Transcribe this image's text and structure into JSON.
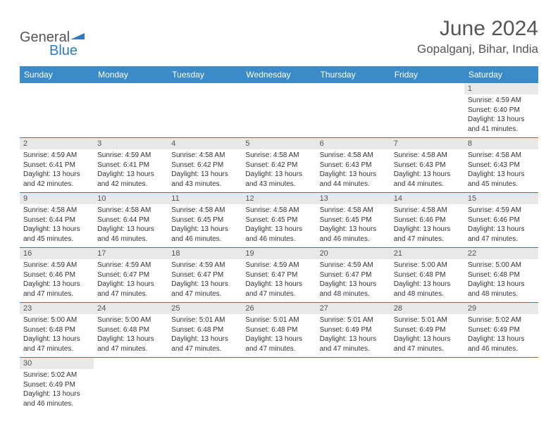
{
  "logo": {
    "general": "General",
    "blue": "Blue"
  },
  "header": {
    "month_title": "June 2024",
    "location": "Gopalganj, Bihar, India"
  },
  "colors": {
    "header_bg": "#3b8bc9",
    "row_divider": "#2f7bbf",
    "daynum_bg": "#e8e8e8",
    "text": "#333333",
    "title": "#555555"
  },
  "day_headers": [
    "Sunday",
    "Monday",
    "Tuesday",
    "Wednesday",
    "Thursday",
    "Friday",
    "Saturday"
  ],
  "weeks": [
    [
      null,
      null,
      null,
      null,
      null,
      null,
      {
        "n": "1",
        "sr": "Sunrise: 4:59 AM",
        "ss": "Sunset: 6:40 PM",
        "d1": "Daylight: 13 hours",
        "d2": "and 41 minutes."
      }
    ],
    [
      {
        "n": "2",
        "sr": "Sunrise: 4:59 AM",
        "ss": "Sunset: 6:41 PM",
        "d1": "Daylight: 13 hours",
        "d2": "and 42 minutes."
      },
      {
        "n": "3",
        "sr": "Sunrise: 4:59 AM",
        "ss": "Sunset: 6:41 PM",
        "d1": "Daylight: 13 hours",
        "d2": "and 42 minutes."
      },
      {
        "n": "4",
        "sr": "Sunrise: 4:58 AM",
        "ss": "Sunset: 6:42 PM",
        "d1": "Daylight: 13 hours",
        "d2": "and 43 minutes."
      },
      {
        "n": "5",
        "sr": "Sunrise: 4:58 AM",
        "ss": "Sunset: 6:42 PM",
        "d1": "Daylight: 13 hours",
        "d2": "and 43 minutes."
      },
      {
        "n": "6",
        "sr": "Sunrise: 4:58 AM",
        "ss": "Sunset: 6:43 PM",
        "d1": "Daylight: 13 hours",
        "d2": "and 44 minutes."
      },
      {
        "n": "7",
        "sr": "Sunrise: 4:58 AM",
        "ss": "Sunset: 6:43 PM",
        "d1": "Daylight: 13 hours",
        "d2": "and 44 minutes."
      },
      {
        "n": "8",
        "sr": "Sunrise: 4:58 AM",
        "ss": "Sunset: 6:43 PM",
        "d1": "Daylight: 13 hours",
        "d2": "and 45 minutes."
      }
    ],
    [
      {
        "n": "9",
        "sr": "Sunrise: 4:58 AM",
        "ss": "Sunset: 6:44 PM",
        "d1": "Daylight: 13 hours",
        "d2": "and 45 minutes."
      },
      {
        "n": "10",
        "sr": "Sunrise: 4:58 AM",
        "ss": "Sunset: 6:44 PM",
        "d1": "Daylight: 13 hours",
        "d2": "and 46 minutes."
      },
      {
        "n": "11",
        "sr": "Sunrise: 4:58 AM",
        "ss": "Sunset: 6:45 PM",
        "d1": "Daylight: 13 hours",
        "d2": "and 46 minutes."
      },
      {
        "n": "12",
        "sr": "Sunrise: 4:58 AM",
        "ss": "Sunset: 6:45 PM",
        "d1": "Daylight: 13 hours",
        "d2": "and 46 minutes."
      },
      {
        "n": "13",
        "sr": "Sunrise: 4:58 AM",
        "ss": "Sunset: 6:45 PM",
        "d1": "Daylight: 13 hours",
        "d2": "and 46 minutes."
      },
      {
        "n": "14",
        "sr": "Sunrise: 4:58 AM",
        "ss": "Sunset: 6:46 PM",
        "d1": "Daylight: 13 hours",
        "d2": "and 47 minutes."
      },
      {
        "n": "15",
        "sr": "Sunrise: 4:59 AM",
        "ss": "Sunset: 6:46 PM",
        "d1": "Daylight: 13 hours",
        "d2": "and 47 minutes."
      }
    ],
    [
      {
        "n": "16",
        "sr": "Sunrise: 4:59 AM",
        "ss": "Sunset: 6:46 PM",
        "d1": "Daylight: 13 hours",
        "d2": "and 47 minutes."
      },
      {
        "n": "17",
        "sr": "Sunrise: 4:59 AM",
        "ss": "Sunset: 6:47 PM",
        "d1": "Daylight: 13 hours",
        "d2": "and 47 minutes."
      },
      {
        "n": "18",
        "sr": "Sunrise: 4:59 AM",
        "ss": "Sunset: 6:47 PM",
        "d1": "Daylight: 13 hours",
        "d2": "and 47 minutes."
      },
      {
        "n": "19",
        "sr": "Sunrise: 4:59 AM",
        "ss": "Sunset: 6:47 PM",
        "d1": "Daylight: 13 hours",
        "d2": "and 47 minutes."
      },
      {
        "n": "20",
        "sr": "Sunrise: 4:59 AM",
        "ss": "Sunset: 6:47 PM",
        "d1": "Daylight: 13 hours",
        "d2": "and 48 minutes."
      },
      {
        "n": "21",
        "sr": "Sunrise: 5:00 AM",
        "ss": "Sunset: 6:48 PM",
        "d1": "Daylight: 13 hours",
        "d2": "and 48 minutes."
      },
      {
        "n": "22",
        "sr": "Sunrise: 5:00 AM",
        "ss": "Sunset: 6:48 PM",
        "d1": "Daylight: 13 hours",
        "d2": "and 48 minutes."
      }
    ],
    [
      {
        "n": "23",
        "sr": "Sunrise: 5:00 AM",
        "ss": "Sunset: 6:48 PM",
        "d1": "Daylight: 13 hours",
        "d2": "and 47 minutes."
      },
      {
        "n": "24",
        "sr": "Sunrise: 5:00 AM",
        "ss": "Sunset: 6:48 PM",
        "d1": "Daylight: 13 hours",
        "d2": "and 47 minutes."
      },
      {
        "n": "25",
        "sr": "Sunrise: 5:01 AM",
        "ss": "Sunset: 6:48 PM",
        "d1": "Daylight: 13 hours",
        "d2": "and 47 minutes."
      },
      {
        "n": "26",
        "sr": "Sunrise: 5:01 AM",
        "ss": "Sunset: 6:48 PM",
        "d1": "Daylight: 13 hours",
        "d2": "and 47 minutes."
      },
      {
        "n": "27",
        "sr": "Sunrise: 5:01 AM",
        "ss": "Sunset: 6:49 PM",
        "d1": "Daylight: 13 hours",
        "d2": "and 47 minutes."
      },
      {
        "n": "28",
        "sr": "Sunrise: 5:01 AM",
        "ss": "Sunset: 6:49 PM",
        "d1": "Daylight: 13 hours",
        "d2": "and 47 minutes."
      },
      {
        "n": "29",
        "sr": "Sunrise: 5:02 AM",
        "ss": "Sunset: 6:49 PM",
        "d1": "Daylight: 13 hours",
        "d2": "and 46 minutes."
      }
    ],
    [
      {
        "n": "30",
        "sr": "Sunrise: 5:02 AM",
        "ss": "Sunset: 6:49 PM",
        "d1": "Daylight: 13 hours",
        "d2": "and 46 minutes."
      },
      null,
      null,
      null,
      null,
      null,
      null
    ]
  ]
}
